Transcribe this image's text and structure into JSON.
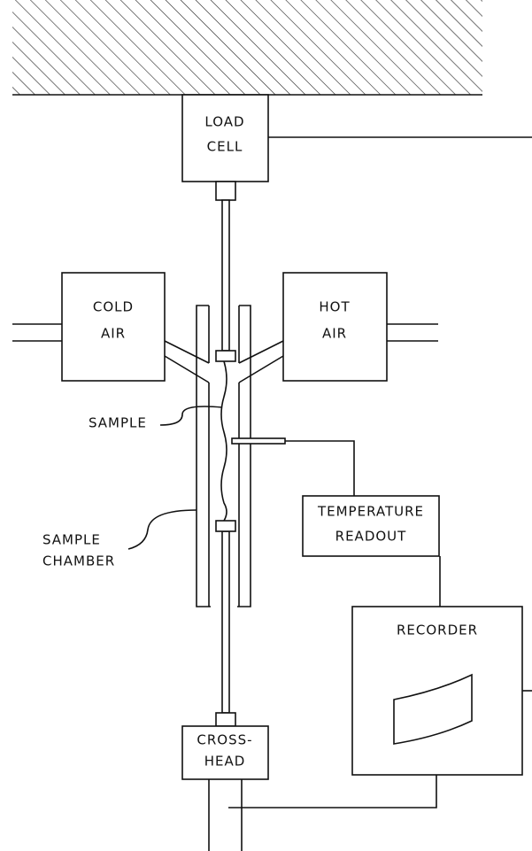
{
  "nodes": [
    {
      "lines": [
        "LOAD",
        "CELL"
      ]
    },
    {
      "lines": [
        "COLD",
        "AIR"
      ]
    },
    {
      "lines": [
        "HOT",
        "AIR"
      ]
    },
    {
      "lines": [
        "SAMPLE"
      ]
    },
    {
      "lines": [
        "SAMPLE",
        "CHAMBER"
      ]
    },
    {
      "lines": [
        "TEMPERATURE",
        "READOUT"
      ]
    },
    {
      "lines": [
        "RECORDER"
      ]
    },
    {
      "lines": [
        "CROSS-",
        "HEAD"
      ]
    }
  ]
}
